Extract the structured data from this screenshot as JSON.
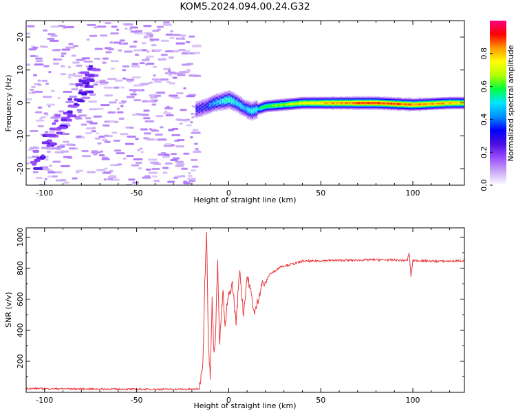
{
  "figure": {
    "title": "KOM5.2024.094.00.24.G32"
  },
  "chart_data": [
    {
      "type": "heatmap",
      "xlabel": "Height of straight line (km)",
      "ylabel": "Frequency (Hz)",
      "xlim": [
        -110,
        128
      ],
      "ylim": [
        -25,
        25
      ],
      "x_ticks": [
        -100,
        -50,
        0,
        50,
        100
      ],
      "y_ticks": [
        -20,
        -10,
        0,
        10,
        20
      ],
      "grid": false,
      "colorbar": {
        "label": "Normalized spectral amplitude",
        "range": [
          0,
          1
        ],
        "ticks": [
          0.0,
          0.2,
          0.4,
          0.6,
          0.8
        ],
        "colormap": [
          "#ffffff",
          "#c9a8f5",
          "#9b4dff",
          "#4a0fe0",
          "#0000ff",
          "#0090ff",
          "#00e5ff",
          "#00ff40",
          "#b0ff00",
          "#ffff00",
          "#ff9a00",
          "#ff0000",
          "#ff007f"
        ]
      },
      "features": {
        "noise_region_x": [
          -110,
          -18
        ],
        "diagonal_streak": {
          "x": [
            -108,
            -75
          ],
          "y": [
            -20,
            10
          ]
        },
        "main_ridge": {
          "x": [
            -18,
            -12,
            -8,
            -4,
            0,
            4,
            8,
            12,
            20,
            40,
            60,
            80,
            100,
            120,
            128
          ],
          "y": [
            -2,
            -1,
            0,
            0.5,
            1,
            0,
            -1.5,
            -2.5,
            -1,
            0,
            0,
            0,
            -0.5,
            0,
            0
          ],
          "peak_amplitude": [
            0.3,
            0.35,
            0.45,
            0.5,
            0.55,
            0.5,
            0.45,
            0.5,
            0.6,
            0.75,
            0.85,
            0.9,
            0.85,
            0.8,
            0.75
          ]
        }
      }
    },
    {
      "type": "line",
      "xlabel": "Height of straight line (km)",
      "ylabel": "SNR (v/v)",
      "xlim": [
        -110,
        128
      ],
      "ylim": [
        0,
        1060
      ],
      "x_ticks": [
        -100,
        -50,
        0,
        50,
        100
      ],
      "y_ticks": [
        200,
        400,
        600,
        800,
        1000
      ],
      "grid": false,
      "series": [
        {
          "color": "#e8383d",
          "x": [
            -110,
            -80,
            -50,
            -20,
            -16,
            -14,
            -13,
            -12,
            -11,
            -10,
            -9,
            -8,
            -7,
            -6,
            -5,
            -4,
            -3,
            -2,
            -1,
            0,
            2,
            4,
            6,
            8,
            10,
            12,
            14,
            16,
            18,
            20,
            22,
            25,
            28,
            32,
            36,
            40,
            45,
            50,
            55,
            60,
            70,
            80,
            90,
            97,
            98,
            99,
            100,
            110,
            120,
            128
          ],
          "y": [
            25,
            22,
            20,
            20,
            22,
            200,
            700,
            1060,
            300,
            100,
            600,
            250,
            400,
            880,
            300,
            500,
            650,
            400,
            550,
            620,
            700,
            450,
            800,
            500,
            750,
            650,
            500,
            600,
            700,
            700,
            760,
            780,
            810,
            820,
            830,
            845,
            845,
            848,
            850,
            850,
            852,
            855,
            852,
            850,
            900,
            750,
            850,
            845,
            845,
            848
          ]
        }
      ]
    }
  ]
}
